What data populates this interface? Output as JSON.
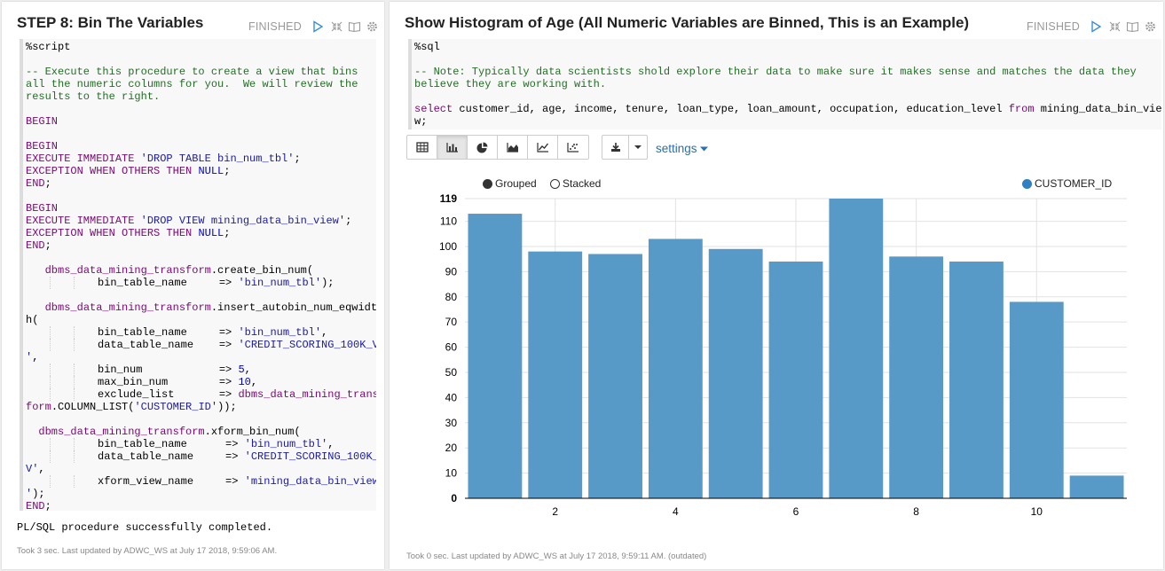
{
  "left": {
    "title": "STEP 8: Bin The Variables",
    "status": "FINISHED",
    "code": [
      [
        [
          "p",
          "%script"
        ]
      ],
      [],
      [
        [
          "c",
          "-- Execute this procedure to create a view that bins"
        ]
      ],
      [
        [
          "c",
          "all the numeric columns for you.  We will review the"
        ]
      ],
      [
        [
          "c",
          "results to the right."
        ]
      ],
      [],
      [
        [
          "k",
          "BEGIN"
        ]
      ],
      [],
      [
        [
          "k",
          "BEGIN"
        ]
      ],
      [
        [
          "k",
          "EXECUTE IMMEDIATE "
        ],
        [
          "s",
          "'DROP TABLE bin_num_tbl'"
        ],
        [
          "p",
          ";"
        ]
      ],
      [
        [
          "k",
          "EXCEPTION WHEN OTHERS THEN "
        ],
        [
          "n",
          "NULL"
        ],
        [
          "p",
          ";"
        ]
      ],
      [
        [
          "k",
          "END"
        ],
        [
          "p",
          ";"
        ]
      ],
      [],
      [
        [
          "k",
          "BEGIN"
        ]
      ],
      [
        [
          "k",
          "EXECUTE IMMEDIATE "
        ],
        [
          "s",
          "'DROP VIEW mining_data_bin_view'"
        ],
        [
          "p",
          ";"
        ]
      ],
      [
        [
          "k",
          "EXCEPTION WHEN OTHERS THEN "
        ],
        [
          "n",
          "NULL"
        ],
        [
          "p",
          ";"
        ]
      ],
      [
        [
          "k",
          "END"
        ],
        [
          "p",
          ";"
        ]
      ],
      [],
      [
        [
          "p",
          "   "
        ],
        [
          "k",
          "dbms_data_mining_transform"
        ],
        [
          "p",
          ".create_bin_num("
        ]
      ],
      [
        [
          "i",
          "2"
        ],
        [
          "p",
          "bin_table_name     => "
        ],
        [
          "s",
          "'bin_num_tbl'"
        ],
        [
          "p",
          ");"
        ]
      ],
      [],
      [
        [
          "p",
          "   "
        ],
        [
          "k",
          "dbms_data_mining_transform"
        ],
        [
          "p",
          ".insert_autobin_num_eqwidt"
        ]
      ],
      [
        [
          "p",
          "h("
        ]
      ],
      [
        [
          "i",
          "2"
        ],
        [
          "p",
          "bin_table_name     => "
        ],
        [
          "s",
          "'bin_num_tbl'"
        ],
        [
          "p",
          ","
        ]
      ],
      [
        [
          "i",
          "2"
        ],
        [
          "p",
          "data_table_name    => "
        ],
        [
          "s",
          "'CREDIT_SCORING_100K_V"
        ]
      ],
      [
        [
          "s",
          "'"
        ],
        [
          "p",
          ","
        ]
      ],
      [
        [
          "i",
          "2"
        ],
        [
          "p",
          "bin_num            => "
        ],
        [
          "n",
          "5"
        ],
        [
          "p",
          ","
        ]
      ],
      [
        [
          "i",
          "2"
        ],
        [
          "p",
          "max_bin_num        => "
        ],
        [
          "n",
          "10"
        ],
        [
          "p",
          ","
        ]
      ],
      [
        [
          "i",
          "2"
        ],
        [
          "p",
          "exclude_list       => "
        ],
        [
          "k",
          "dbms_data_mining_trans"
        ]
      ],
      [
        [
          "k",
          "form"
        ],
        [
          "p",
          ".COLUMN_LIST("
        ],
        [
          "s",
          "'CUSTOMER_ID'"
        ],
        [
          "p",
          "));"
        ]
      ],
      [],
      [
        [
          "p",
          "  "
        ],
        [
          "k",
          "dbms_data_mining_transform"
        ],
        [
          "p",
          ".xform_bin_num("
        ]
      ],
      [
        [
          "i",
          "2"
        ],
        [
          "p",
          "bin_table_name      => "
        ],
        [
          "s",
          "'bin_num_tbl'"
        ],
        [
          "p",
          ","
        ]
      ],
      [
        [
          "i",
          "2"
        ],
        [
          "p",
          "data_table_name     => "
        ],
        [
          "s",
          "'CREDIT_SCORING_100K_"
        ]
      ],
      [
        [
          "s",
          "V'"
        ],
        [
          "p",
          ","
        ]
      ],
      [
        [
          "i",
          "2"
        ],
        [
          "p",
          "xform_view_name     => "
        ],
        [
          "s",
          "'mining_data_bin_view"
        ]
      ],
      [
        [
          "s",
          "'"
        ],
        [
          "p",
          ");"
        ]
      ],
      [
        [
          "k",
          "END"
        ],
        [
          "p",
          ";"
        ]
      ]
    ],
    "result": "PL/SQL procedure successfully completed.",
    "footer": "Took 3 sec. Last updated by ADWC_WS at July 17 2018, 9:59:06 AM."
  },
  "right": {
    "title": "Show Histogram of Age (All Numeric Variables are Binned, This is an Example)",
    "status": "FINISHED",
    "code": [
      [
        [
          "p",
          "%sql"
        ]
      ],
      [],
      [
        [
          "c",
          "-- Note: Typically data scientists shold explore their data to make sure it makes sense and matches the data they"
        ]
      ],
      [
        [
          "c",
          "believe they are working with."
        ]
      ],
      [],
      [
        [
          "k",
          "select"
        ],
        [
          "p",
          " customer_id, age, income, tenure, loan_type, loan_amount, occupation, education_level "
        ],
        [
          "k",
          "from"
        ],
        [
          "p",
          " mining_data_bin_vie"
        ]
      ],
      [
        [
          "p",
          "w;"
        ]
      ]
    ],
    "toolbar": {
      "views": [
        "table-icon",
        "bar-chart-icon",
        "pie-chart-icon",
        "area-chart-icon",
        "line-chart-icon",
        "scatter-chart-icon"
      ],
      "active": 1,
      "settings_label": "settings"
    },
    "legend": {
      "grouped": "Grouped",
      "stacked": "Stacked",
      "mode": "grouped"
    },
    "footer": "Took 0 sec. Last updated by ADWC_WS at July 17 2018, 9:59:11 AM. (outdated)"
  },
  "chart_data": {
    "type": "bar",
    "categories": [
      "1",
      "2",
      "3",
      "4",
      "5",
      "6",
      "7",
      "8",
      "9",
      "10",
      "11"
    ],
    "series": [
      {
        "name": "CUSTOMER_ID",
        "values": [
          113,
          98,
          97,
          103,
          99,
          94,
          119,
          96,
          94,
          78,
          9
        ],
        "color": "#5799c7"
      }
    ],
    "ylim": [
      0,
      119
    ],
    "yticks": [
      0,
      10,
      20,
      30,
      40,
      50,
      60,
      70,
      80,
      90,
      100,
      110,
      119
    ],
    "xticks": [
      "2",
      "4",
      "6",
      "8",
      "10"
    ],
    "grid": true,
    "legend_position": "top-right"
  }
}
